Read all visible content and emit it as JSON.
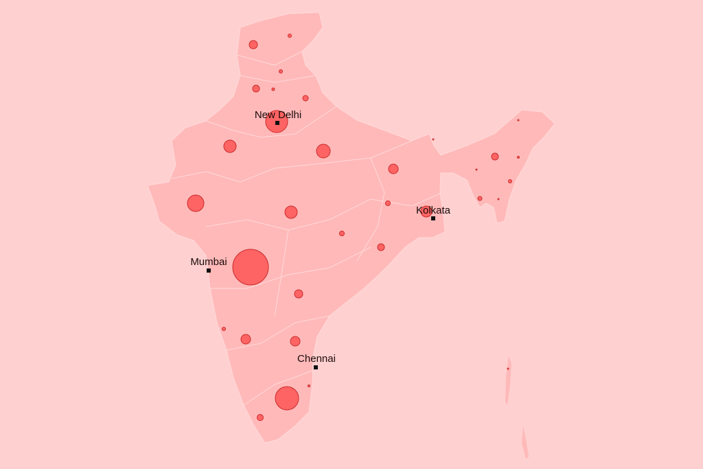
{
  "cities": [
    {
      "label": "New Delhi"
    },
    {
      "label": "Mumbai"
    },
    {
      "label": "Kolkata"
    },
    {
      "label": "Chennai"
    }
  ]
}
